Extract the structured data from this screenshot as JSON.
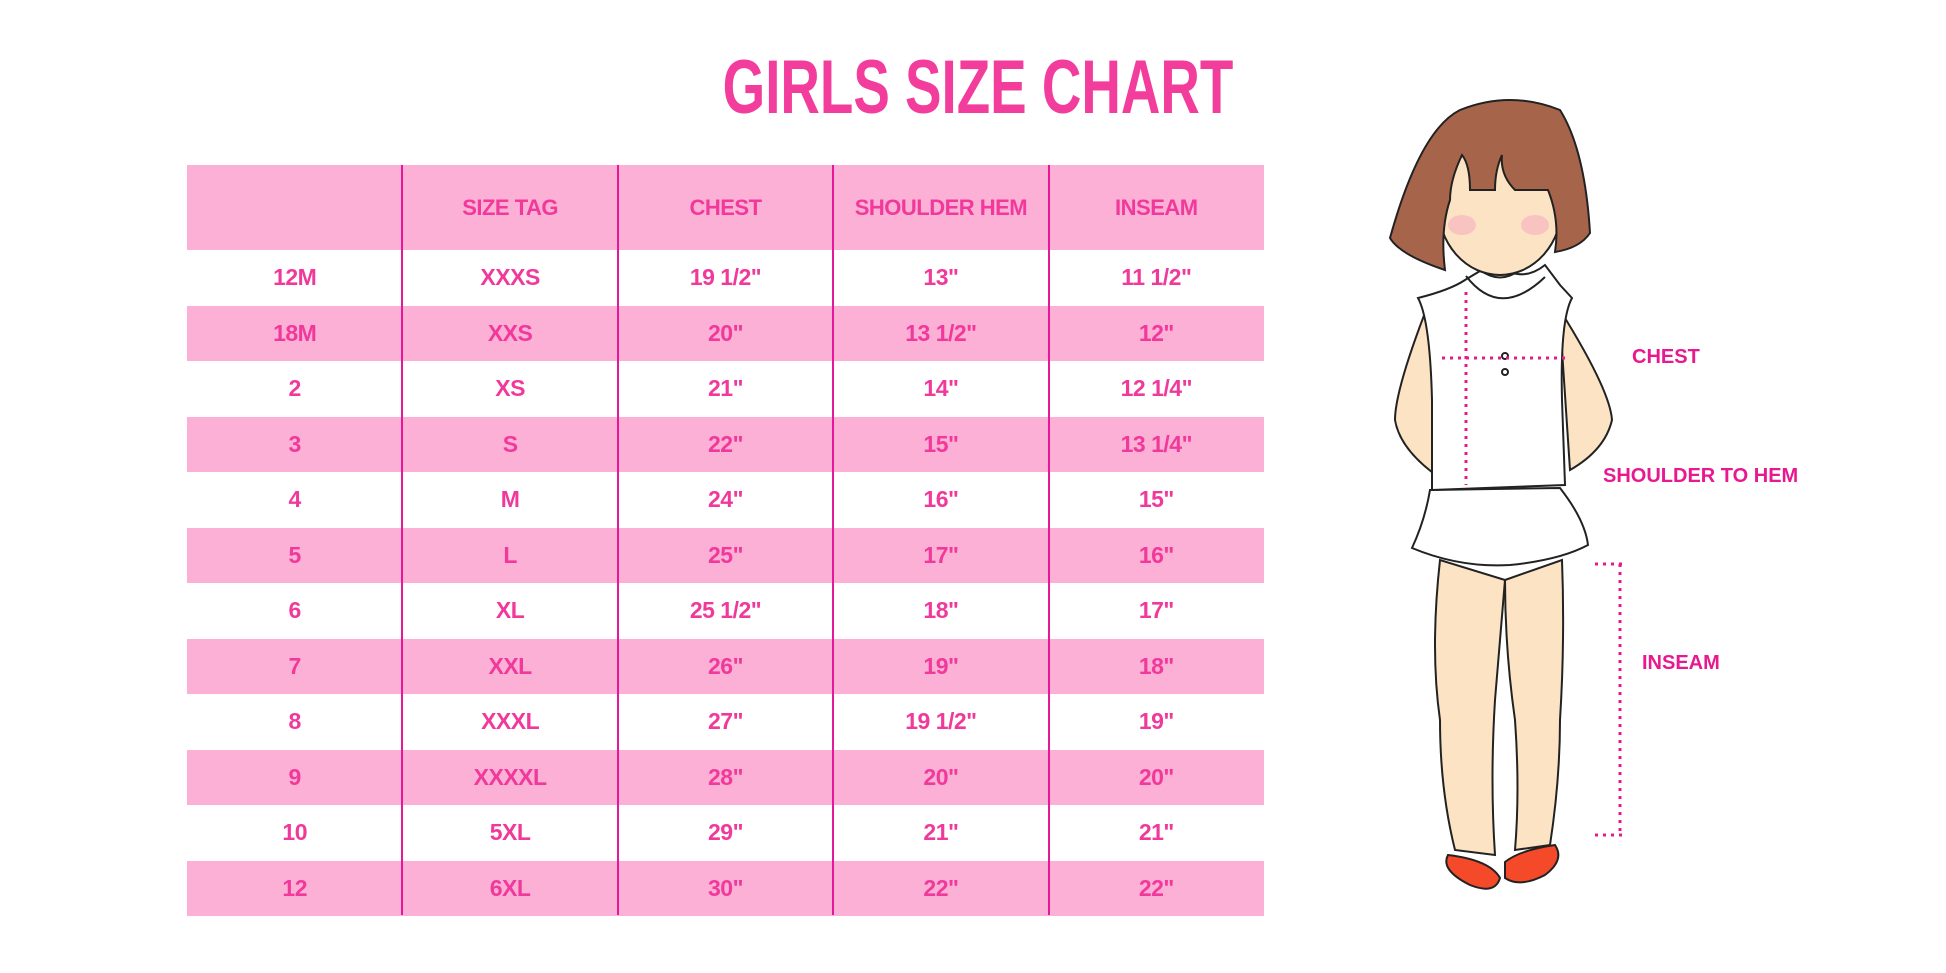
{
  "title": "GIRLS SIZE CHART",
  "table": {
    "headers": [
      "",
      "SIZE TAG",
      "CHEST",
      "SHOULDER HEM",
      "INSEAM"
    ],
    "rows": [
      [
        "12M",
        "XXXS",
        "19 1/2\"",
        "13\"",
        "11 1/2\""
      ],
      [
        "18M",
        "XXS",
        "20\"",
        "13 1/2\"",
        "12\""
      ],
      [
        "2",
        "XS",
        "21\"",
        "14\"",
        "12 1/4\""
      ],
      [
        "3",
        "S",
        "22\"",
        "15\"",
        "13 1/4\""
      ],
      [
        "4",
        "M",
        "24\"",
        "16\"",
        "15\""
      ],
      [
        "5",
        "L",
        "25\"",
        "17\"",
        "16\""
      ],
      [
        "6",
        "XL",
        "25 1/2\"",
        "18\"",
        "17\""
      ],
      [
        "7",
        "XXL",
        "26\"",
        "19\"",
        "18\""
      ],
      [
        "8",
        "XXXL",
        "27\"",
        "19 1/2\"",
        "19\""
      ],
      [
        "9",
        "XXXXL",
        "28\"",
        "20\"",
        "20\""
      ],
      [
        "10",
        "5XL",
        "29\"",
        "21\"",
        "21\""
      ],
      [
        "12",
        "6XL",
        "30\"",
        "22\"",
        "22\""
      ]
    ]
  },
  "figure": {
    "labels": {
      "chest": "CHEST",
      "shoulder_to_hem": "SHOULDER TO HEM",
      "inseam": "INSEAM"
    }
  },
  "colors": {
    "text": "#f0399b",
    "row_pink": "#fdb0d5",
    "divider": "#e5189a"
  }
}
